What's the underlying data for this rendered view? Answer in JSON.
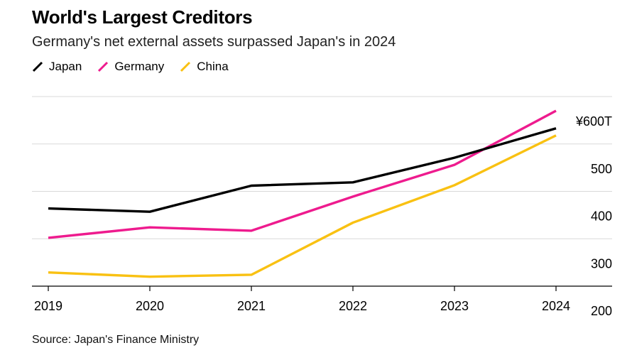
{
  "title": "World's Largest Creditors",
  "subtitle": "Germany's net external assets surpassed Japan's in 2024",
  "source": "Source: Japan's Finance Ministry",
  "chart_data": {
    "type": "line",
    "x": [
      "2019",
      "2020",
      "2021",
      "2022",
      "2023",
      "2024"
    ],
    "series": [
      {
        "name": "Japan",
        "color": "#000000",
        "values": [
          364,
          357,
          412,
          419,
          471,
          533
        ]
      },
      {
        "name": "Germany",
        "color": "#ee1b8e",
        "values": [
          302,
          324,
          317,
          389,
          456,
          570
        ]
      },
      {
        "name": "China",
        "color": "#f9c112",
        "values": [
          229,
          220,
          224,
          334,
          413,
          518
        ]
      }
    ],
    "ylim": [
      160,
      630
    ],
    "yticks": [
      200,
      300,
      400,
      500,
      600
    ],
    "ytick_labels": [
      "200",
      "300",
      "400",
      "500",
      "¥600T"
    ],
    "xlabel": "",
    "ylabel": "",
    "grid": true,
    "legend_position": "top-left"
  }
}
